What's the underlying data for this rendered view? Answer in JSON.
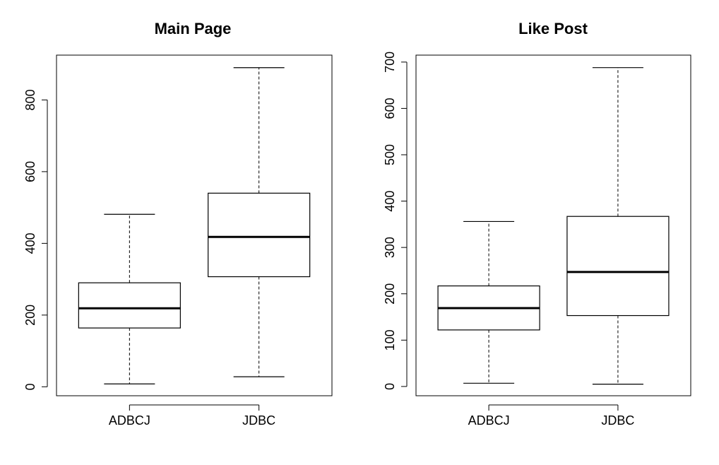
{
  "chart_data": [
    {
      "type": "box",
      "title": "Main Page",
      "xlabel": "",
      "ylabel": "",
      "categories": [
        "ADBCJ",
        "JDBC"
      ],
      "ylim": [
        -25,
        925
      ],
      "yticks": [
        0,
        200,
        400,
        600,
        800
      ],
      "boxes": [
        {
          "name": "ADBCJ",
          "min": 8,
          "q1": 164,
          "median": 219,
          "q3": 290,
          "max": 481
        },
        {
          "name": "JDBC",
          "min": 28,
          "q1": 307,
          "median": 418,
          "q3": 540,
          "max": 890
        }
      ]
    },
    {
      "type": "box",
      "title": "Like Post",
      "xlabel": "",
      "ylabel": "",
      "categories": [
        "ADBCJ",
        "JDBC"
      ],
      "ylim": [
        -20,
        715
      ],
      "yticks": [
        0,
        100,
        200,
        300,
        400,
        500,
        600,
        700
      ],
      "boxes": [
        {
          "name": "ADBCJ",
          "min": 7,
          "q1": 122,
          "median": 169,
          "q3": 217,
          "max": 356
        },
        {
          "name": "JDBC",
          "min": 5,
          "q1": 153,
          "median": 247,
          "q3": 367,
          "max": 688
        }
      ]
    }
  ]
}
